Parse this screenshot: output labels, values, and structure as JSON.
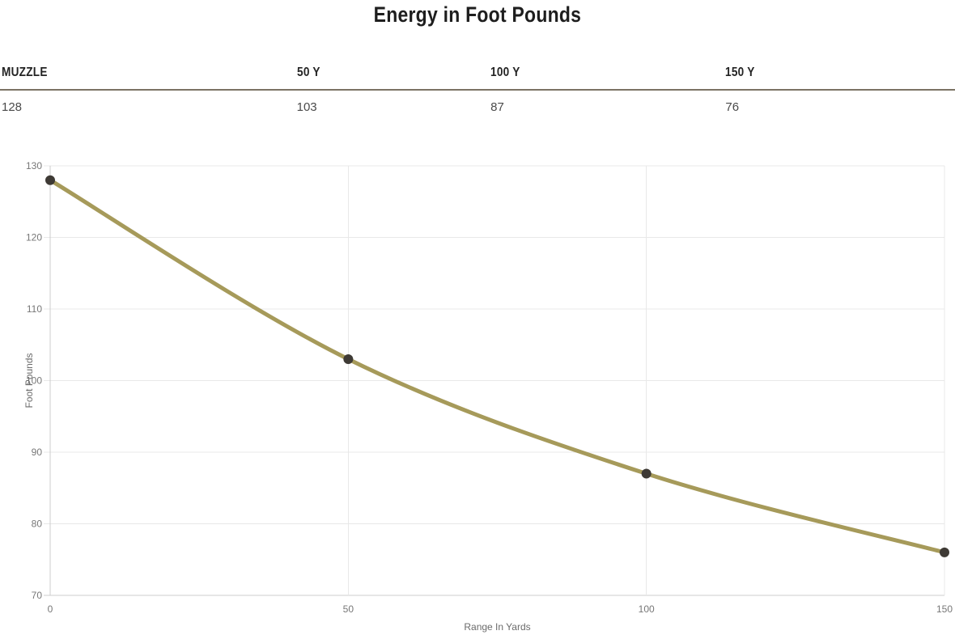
{
  "page": {
    "title": "Energy in Foot Pounds"
  },
  "table": {
    "columns": [
      {
        "label": "MUZZLE",
        "value": "128"
      },
      {
        "label": "50 Y",
        "value": "103"
      },
      {
        "label": "100 Y",
        "value": "87"
      },
      {
        "label": "150 Y",
        "value": "76"
      }
    ]
  },
  "chart_data": {
    "type": "line",
    "title": "",
    "x": [
      0,
      50,
      100,
      150
    ],
    "values": [
      128,
      103,
      87,
      76
    ],
    "series_name": "Energy in Foot Pounds",
    "xlabel": "Range In Yards",
    "ylabel": "Foot Pounds",
    "xlim": [
      0,
      150
    ],
    "ylim": [
      70,
      130
    ],
    "xticks": [
      0,
      50,
      100,
      150
    ],
    "yticks": [
      70,
      80,
      90,
      100,
      110,
      120,
      130
    ],
    "grid": true,
    "legend": "none",
    "smooth": true,
    "colors": {
      "line": "#a69a5a",
      "point": "#3e3a35",
      "grid": "#e8e8e8",
      "axis_line": "#cccccc",
      "tick_text": "#777777",
      "axis_label_text": "#6b6b6b",
      "title_text": "#1e1e1e",
      "table_border": "#7b7264"
    }
  }
}
